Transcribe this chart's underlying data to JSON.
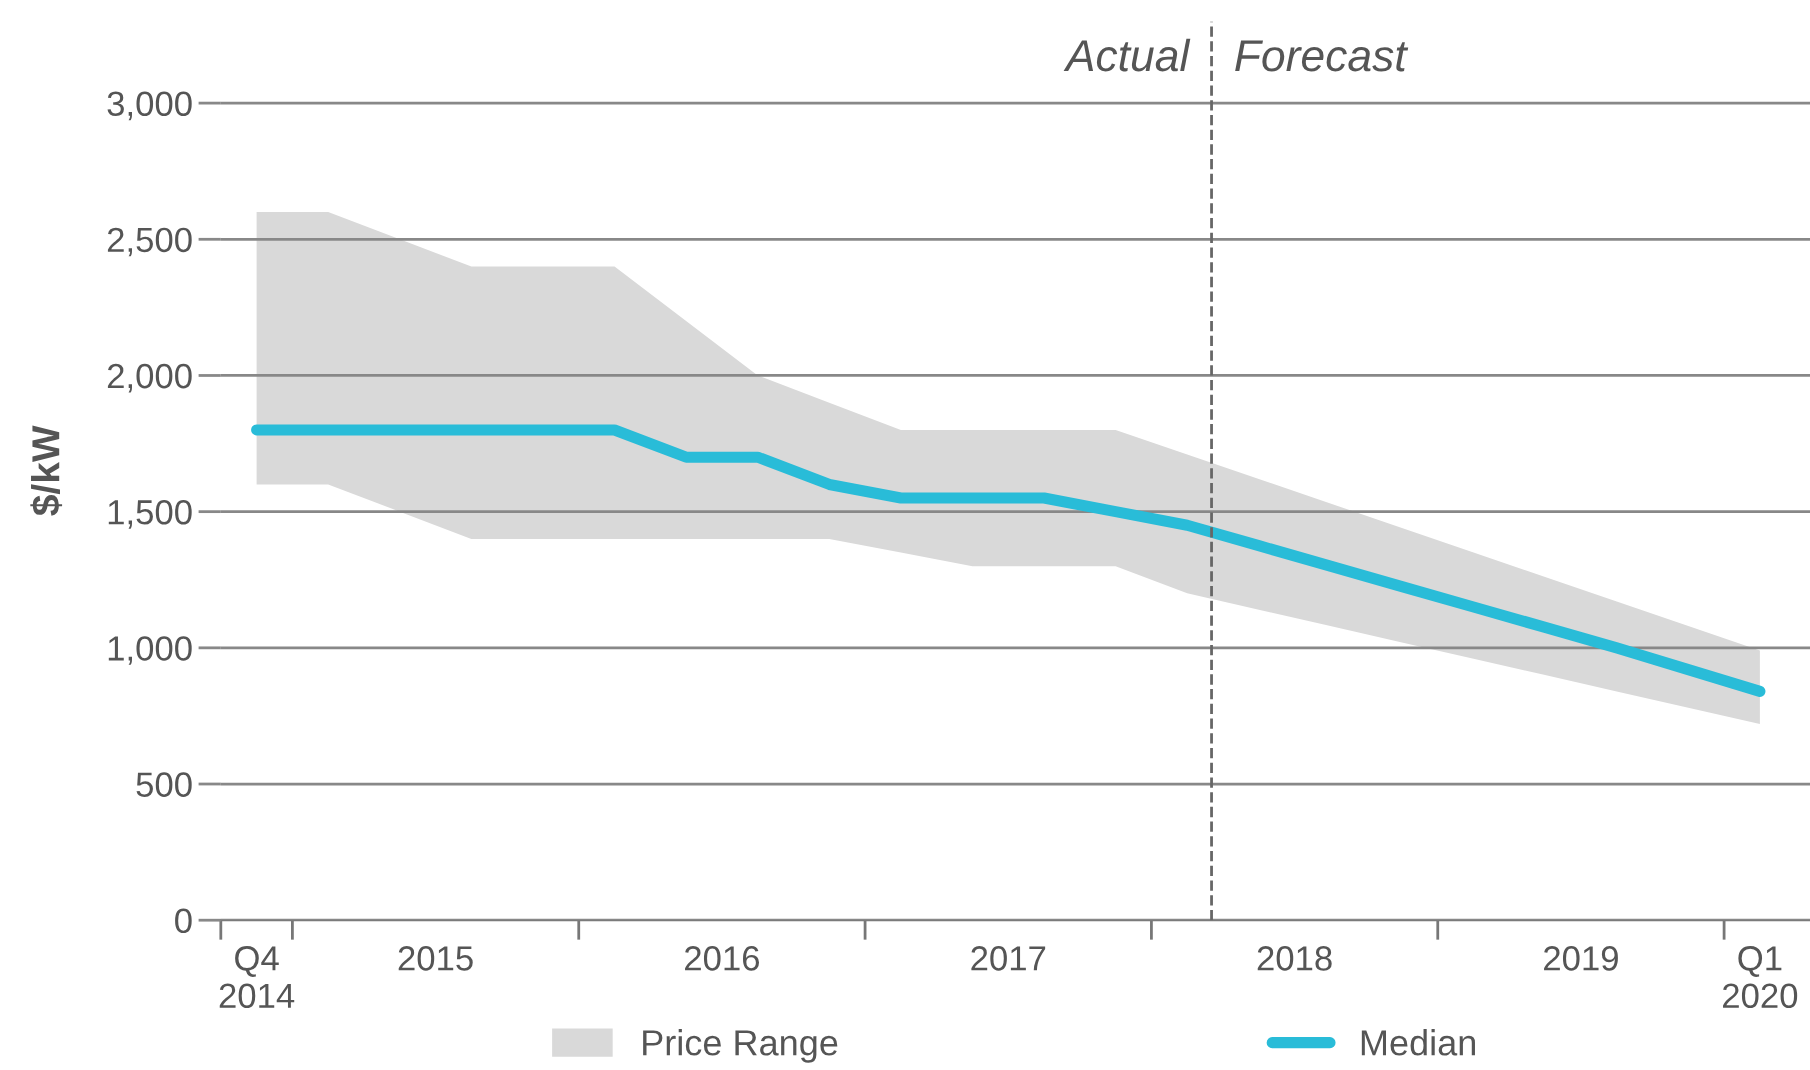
{
  "chart_data": {
    "type": "line",
    "ylabel": "$/kW",
    "x": [
      2014.875,
      2015.125,
      2015.375,
      2015.625,
      2015.875,
      2016.125,
      2016.375,
      2016.625,
      2016.875,
      2017.125,
      2017.375,
      2017.625,
      2017.875,
      2018.125,
      2018.375,
      2018.625,
      2018.875,
      2019.125,
      2019.375,
      2019.625,
      2019.875,
      2020.125
    ],
    "series": [
      {
        "name": "Price Range",
        "type": "area",
        "color": "#d9d9d9",
        "values": [
          null,
          null,
          null,
          null,
          null,
          null,
          null,
          null,
          null,
          null,
          null,
          null,
          null,
          null,
          null,
          null,
          null,
          null,
          null,
          null,
          null,
          null
        ],
        "lower": [
          1600,
          1600,
          1500,
          1400,
          1400,
          1400,
          1400,
          1400,
          1400,
          1350,
          1300,
          1300,
          1300,
          1200,
          1140,
          1080,
          1020,
          960,
          900,
          840,
          780,
          720
        ],
        "upper": [
          2600,
          2600,
          2500,
          2400,
          2400,
          2400,
          2200,
          2000,
          1900,
          1800,
          1800,
          1800,
          1800,
          1710,
          1620,
          1530,
          1440,
          1350,
          1260,
          1170,
          1080,
          990
        ]
      },
      {
        "name": "Median",
        "color": "#29bcd8",
        "values": [
          1800,
          1800,
          1800,
          1800,
          1800,
          1800,
          1700,
          1700,
          1600,
          1550,
          1550,
          1550,
          1500,
          1450,
          1375,
          1300,
          1225,
          1150,
          1075,
          1000,
          920,
          840
        ]
      }
    ],
    "xlim": [
      2014.75,
      2020.3
    ],
    "xticks": [
      {
        "value": 2014.75,
        "label": null
      },
      {
        "value": 2014.875,
        "label": "Q4\n2014"
      },
      {
        "value": 2015.0,
        "label": null
      },
      {
        "value": 2015.5,
        "label": "2015"
      },
      {
        "value": 2016.0,
        "label": null
      },
      {
        "value": 2016.5,
        "label": "2016"
      },
      {
        "value": 2017.0,
        "label": null
      },
      {
        "value": 2017.5,
        "label": "2017"
      },
      {
        "value": 2018.0,
        "label": null
      },
      {
        "value": 2018.5,
        "label": "2018"
      },
      {
        "value": 2019.0,
        "label": null
      },
      {
        "value": 2019.5,
        "label": "2019"
      },
      {
        "value": 2020.0,
        "label": null
      },
      {
        "value": 2020.125,
        "label": "Q1\n2020"
      }
    ],
    "ylim": [
      0,
      3300
    ],
    "yticks": [
      0,
      {
        "value": 500,
        "label": "500"
      },
      {
        "value": 1000,
        "label": "1,000"
      },
      {
        "value": 1500,
        "label": "1,500"
      },
      {
        "value": 2000,
        "label": "2,000"
      },
      {
        "value": 2500,
        "label": "2,500"
      },
      {
        "value": 3000,
        "label": "3,000"
      }
    ],
    "ref_lines": [
      {
        "axis": "x",
        "value": 2018.21,
        "color": "#666666",
        "line_style": "dashed"
      }
    ],
    "annotations": [
      {
        "text": "Actual",
        "x": 2018.21,
        "y": 3160
      },
      {
        "text": "Forecast",
        "x": 2018.21,
        "y": 3160
      }
    ],
    "grid": "y",
    "legend": "bottom",
    "line_style": "solid",
    "marker": "none"
  }
}
